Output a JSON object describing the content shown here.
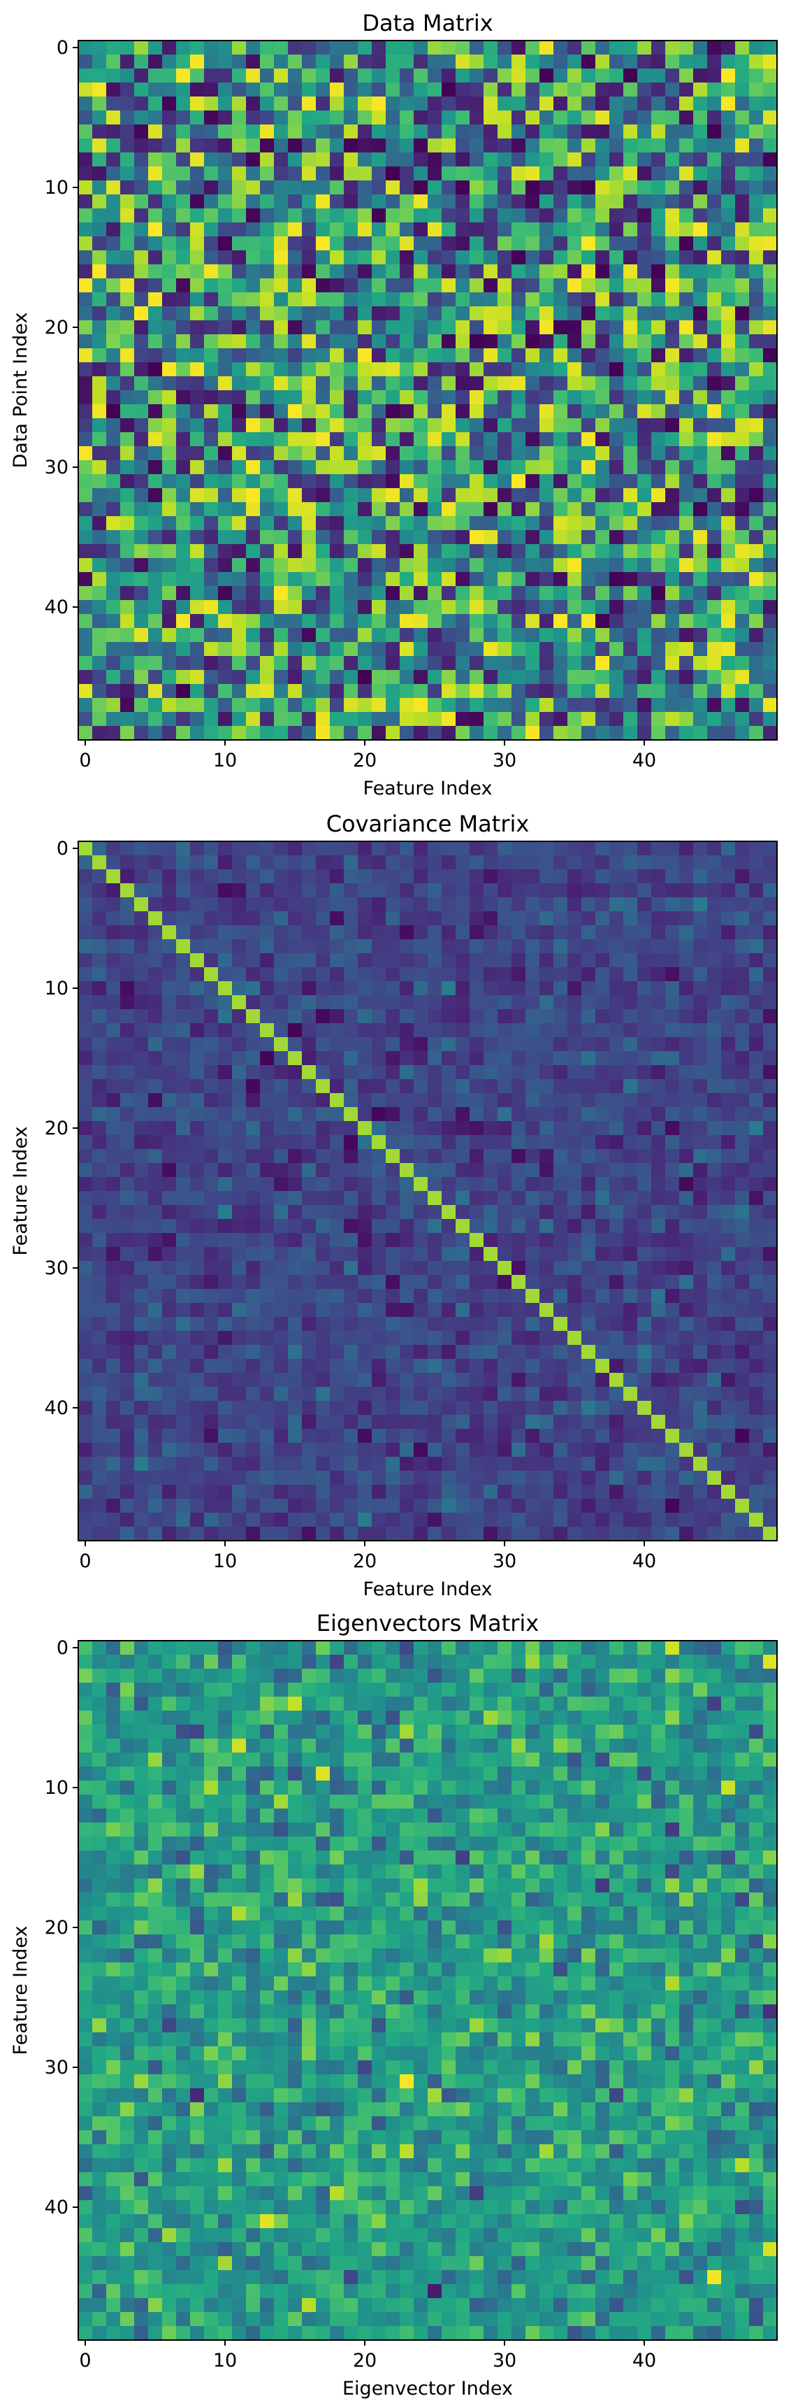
{
  "chart_data": [
    {
      "type": "heatmap",
      "title": "Data Matrix",
      "xlabel": "Feature Index",
      "ylabel": "Data Point Index",
      "rows": 50,
      "cols": 50,
      "xticks": [
        0,
        10,
        20,
        30,
        40
      ],
      "yticks": [
        0,
        10,
        20,
        30,
        40
      ],
      "colormap": "viridis",
      "pattern": "uniform-random",
      "diagonal": false,
      "value_range": [
        0,
        1
      ],
      "seed": 11
    },
    {
      "type": "heatmap",
      "title": "Covariance Matrix",
      "xlabel": "Feature Index",
      "ylabel": "Feature Index",
      "rows": 50,
      "cols": 50,
      "xticks": [
        0,
        10,
        20,
        30,
        40
      ],
      "yticks": [
        0,
        10,
        20,
        30,
        40
      ],
      "colormap": "viridis",
      "pattern": "symmetric-low-offdiagonal",
      "diagonal": true,
      "value_range": [
        0,
        1
      ],
      "seed": 23
    },
    {
      "type": "heatmap",
      "title": "Eigenvectors Matrix",
      "xlabel": "Eigenvector Index",
      "ylabel": "Feature Index",
      "rows": 50,
      "cols": 50,
      "xticks": [
        0,
        10,
        20,
        30,
        40
      ],
      "yticks": [
        0,
        10,
        20,
        30,
        40
      ],
      "colormap": "viridis",
      "pattern": "gaussian-centered",
      "diagonal": false,
      "value_range": [
        0,
        1
      ],
      "seed": 37
    }
  ]
}
